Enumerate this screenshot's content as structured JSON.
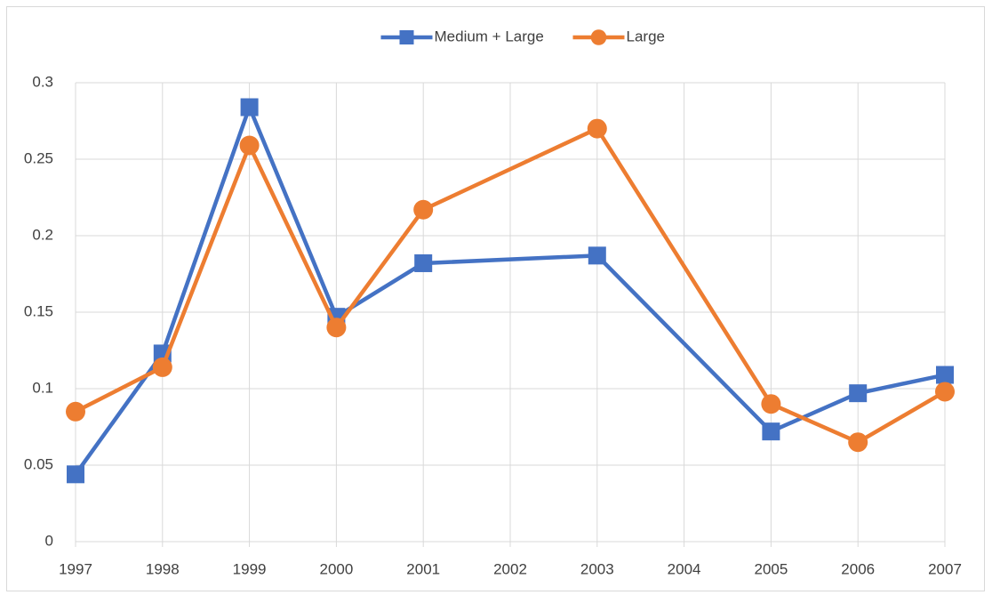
{
  "chart_data": {
    "type": "line",
    "x": [
      1997,
      1998,
      1999,
      2000,
      2001,
      2003,
      2005,
      2006,
      2007
    ],
    "series": [
      {
        "name": "Medium + Large",
        "color": "#4472c4",
        "marker": "square",
        "values": [
          0.044,
          0.123,
          0.284,
          0.147,
          0.182,
          0.187,
          0.072,
          0.097,
          0.109
        ]
      },
      {
        "name": "Large",
        "color": "#ed7d31",
        "marker": "circle",
        "values": [
          0.085,
          0.114,
          0.259,
          0.14,
          0.217,
          0.27,
          0.09,
          0.065,
          0.098
        ]
      }
    ],
    "xlim": [
      1997,
      2007
    ],
    "xticks": [
      1997,
      1998,
      1999,
      2000,
      2001,
      2002,
      2003,
      2004,
      2005,
      2006,
      2007
    ],
    "ylim": [
      0,
      0.3
    ],
    "yticks": [
      0,
      0.05,
      0.1,
      0.15,
      0.2,
      0.25,
      0.3
    ],
    "grid": true,
    "legend": "top"
  }
}
